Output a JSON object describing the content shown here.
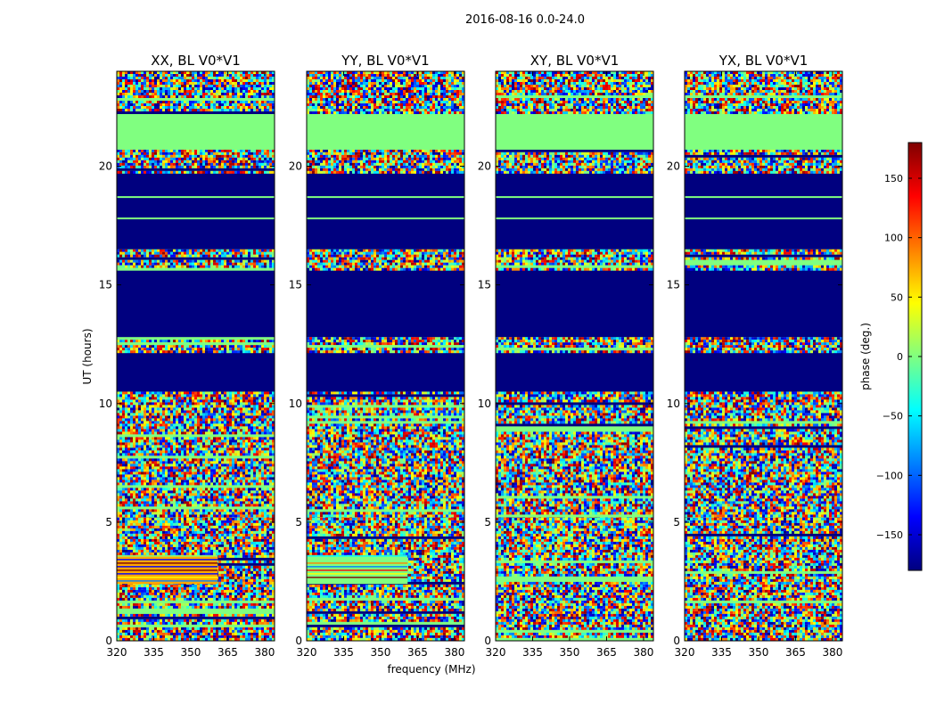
{
  "figure": {
    "suptitle": "2016-08-16 0.0-24.0"
  },
  "chart_data": {
    "type": "heatmap",
    "description_series": "phase spectrogram (UT vs frequency) for four polarizations",
    "panels": [
      {
        "title": "XX, BL V0*V1"
      },
      {
        "title": "YY, BL V0*V1"
      },
      {
        "title": "XY, BL V0*V1"
      },
      {
        "title": "YX, BL V0*V1"
      }
    ],
    "xlabel": "frequency (MHz)",
    "ylabel": "UT (hours)",
    "xlim": [
      320,
      384
    ],
    "ylim": [
      0,
      24
    ],
    "xticks": [
      320,
      335,
      350,
      365,
      380
    ],
    "yticks": [
      0,
      5,
      10,
      15,
      20
    ],
    "colorbar": {
      "label": "phase (deg.)",
      "range": [
        -180,
        180
      ],
      "ticks": [
        150,
        100,
        50,
        0,
        -50,
        -100,
        -150
      ],
      "tick_labels": [
        "150",
        "100",
        "50",
        "0",
        "−50",
        "−100",
        "−150"
      ],
      "colormap": "jet",
      "colors": [
        "#00007f",
        "#0000ff",
        "#0080ff",
        "#00ffff",
        "#80ff80",
        "#ffff00",
        "#ff8000",
        "#ff0000",
        "#7f0000"
      ]
    },
    "regions": [
      {
        "ut": [
          0.0,
          5.3
        ],
        "kind": "noisy",
        "note": "random phase with horizontal stripes"
      },
      {
        "ut": [
          2.4,
          3.6
        ],
        "kind": "band",
        "panel": "XX",
        "color": "#ffa800",
        "note": "orange/green banded region"
      },
      {
        "ut": [
          2.4,
          3.6
        ],
        "kind": "band",
        "panel": "YY",
        "color": "#80ff80",
        "note": "green banded region"
      },
      {
        "ut": [
          5.3,
          10.5
        ],
        "kind": "noisy",
        "note": "random phase with fringe patterns"
      },
      {
        "ut": [
          10.5,
          12.2
        ],
        "kind": "flagged",
        "color": "#00007f"
      },
      {
        "ut": [
          12.2,
          12.8
        ],
        "kind": "noisy-stripes"
      },
      {
        "ut": [
          12.8,
          15.7
        ],
        "kind": "flagged",
        "color": "#00007f"
      },
      {
        "ut": [
          15.7,
          16.5
        ],
        "kind": "noisy-stripes"
      },
      {
        "ut": [
          16.5,
          19.7
        ],
        "kind": "flagged",
        "color": "#00007f",
        "note": "thin stripes at 17.8 and 18.7"
      },
      {
        "ut": [
          19.7,
          20.7
        ],
        "kind": "noisy-stripes"
      },
      {
        "ut": [
          20.7,
          22.2
        ],
        "kind": "flat-green",
        "color": "#80ff80"
      },
      {
        "ut": [
          22.2,
          24.0
        ],
        "kind": "noisy",
        "note": "noisy with fringes near 365 MHz"
      }
    ]
  }
}
